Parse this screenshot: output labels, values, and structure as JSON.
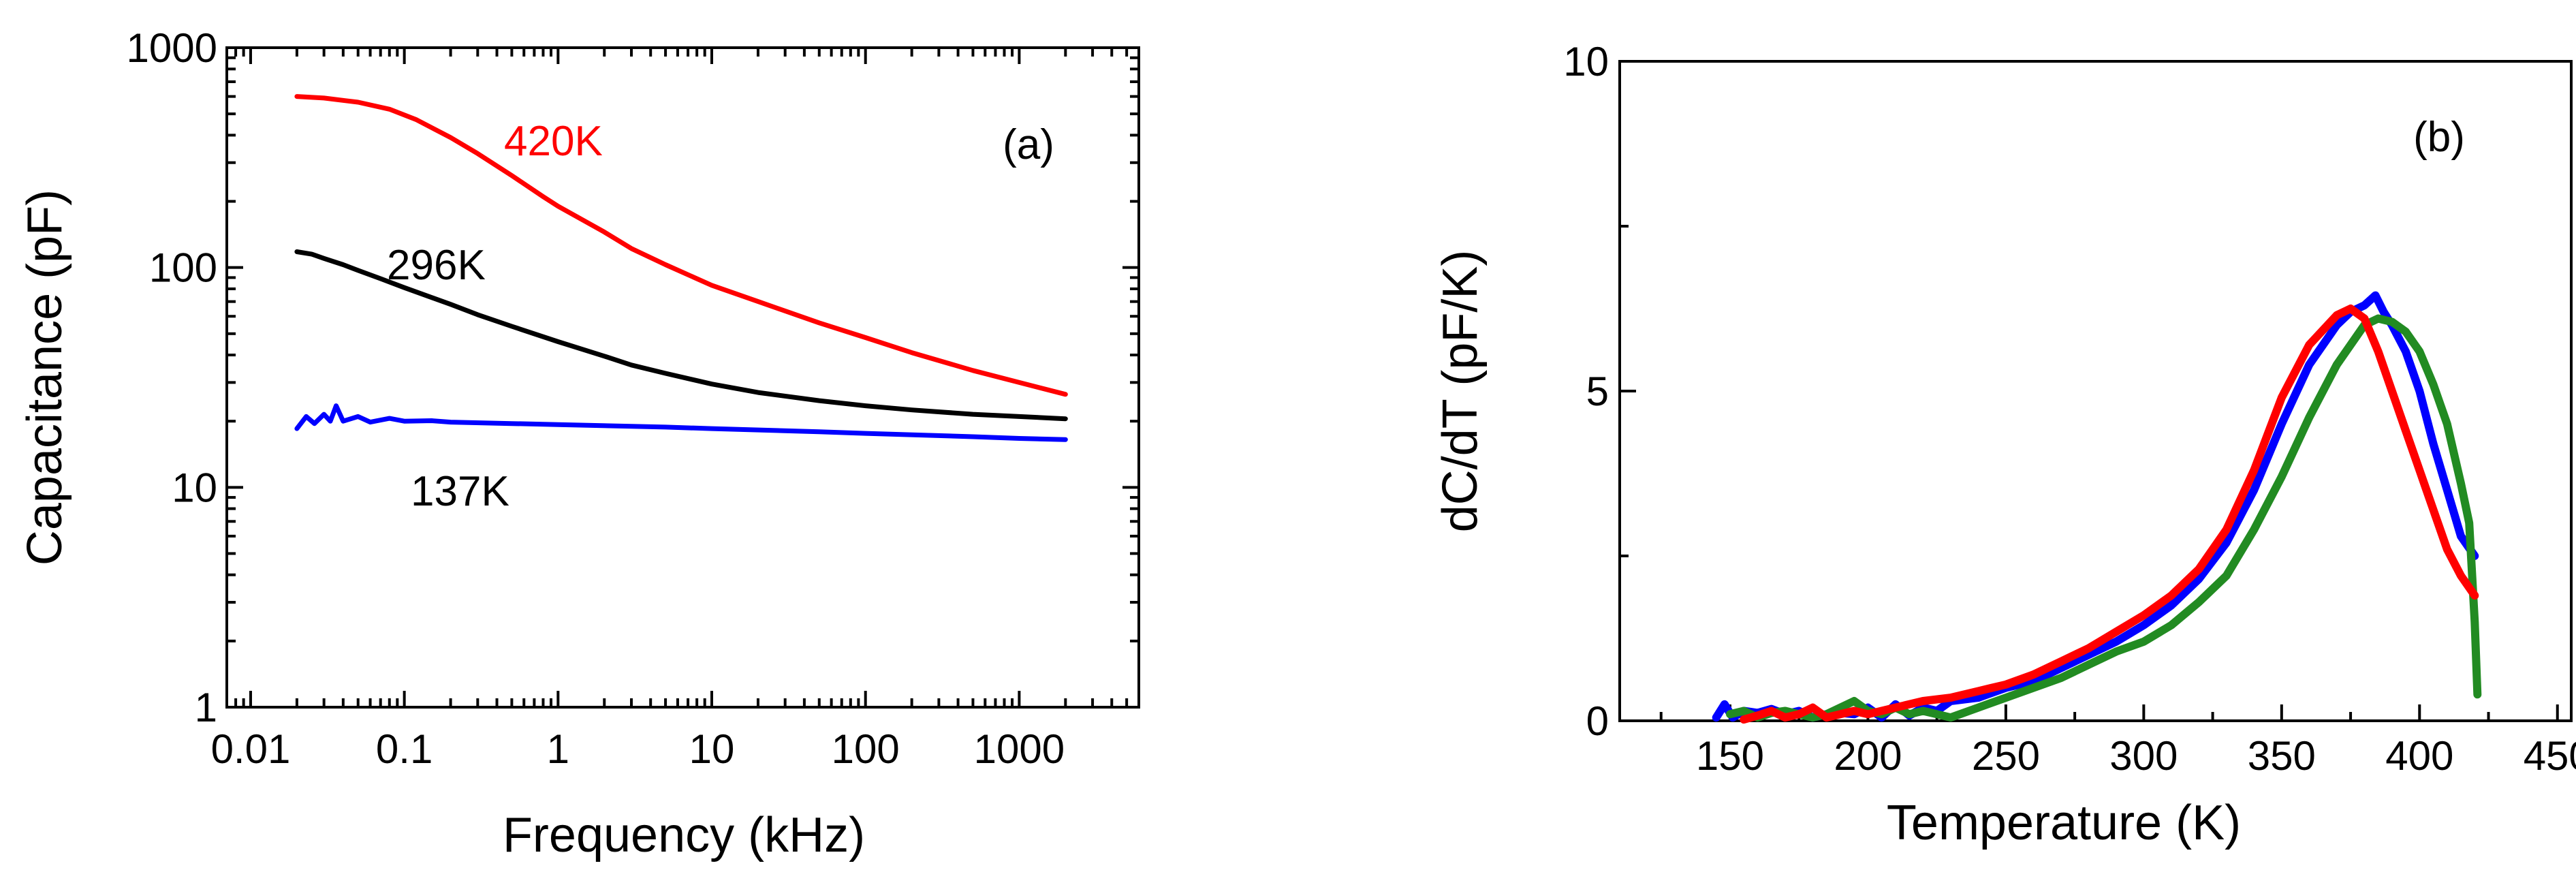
{
  "chart_data": [
    {
      "panel": "(a)",
      "type": "line",
      "xscale": "log",
      "yscale": "log",
      "xlabel": "Frequency (kHz)",
      "ylabel": "Capacitance (pF)",
      "xlim": [
        0.007,
        6000
      ],
      "ylim": [
        1,
        1000
      ],
      "xticks": [
        0.01,
        0.1,
        1,
        10,
        100,
        1000
      ],
      "xtick_labels": [
        "0.01",
        "0.1",
        "1",
        "10",
        "100",
        "1000"
      ],
      "yticks": [
        1,
        10,
        100,
        1000
      ],
      "ytick_labels": [
        "1",
        "10",
        "100",
        "1000"
      ],
      "series": [
        {
          "name": "420K",
          "label": "420K",
          "color": "#ff0000",
          "x": [
            0.02,
            0.03,
            0.05,
            0.08,
            0.12,
            0.2,
            0.3,
            0.5,
            0.8,
            1,
            2,
            3,
            5,
            10,
            20,
            50,
            100,
            200,
            500,
            1000,
            2000
          ],
          "y": [
            600,
            590,
            565,
            525,
            470,
            390,
            330,
            262,
            210,
            190,
            145,
            122,
            103,
            83,
            70,
            56,
            48,
            41,
            34,
            30,
            26.5
          ]
        },
        {
          "name": "296K",
          "label": "296K",
          "color": "#000000",
          "x": [
            0.02,
            0.025,
            0.03,
            0.04,
            0.05,
            0.07,
            0.1,
            0.2,
            0.3,
            0.5,
            1,
            2,
            3,
            5,
            10,
            20,
            50,
            100,
            200,
            500,
            1000,
            2000
          ],
          "y": [
            118,
            115,
            110,
            103,
            97,
            89,
            81,
            68,
            61,
            54,
            46,
            39.5,
            36,
            33,
            29.5,
            27,
            24.8,
            23.5,
            22.5,
            21.5,
            21,
            20.5
          ]
        },
        {
          "name": "137K",
          "label": "137K",
          "color": "#0000ff",
          "x": [
            0.02,
            0.023,
            0.026,
            0.03,
            0.033,
            0.036,
            0.04,
            0.05,
            0.06,
            0.08,
            0.1,
            0.15,
            0.2,
            0.5,
            1,
            5,
            10,
            50,
            100,
            500,
            1000,
            2000
          ],
          "y": [
            18.5,
            21,
            19.5,
            21.5,
            20,
            23.5,
            20,
            21,
            19.8,
            20.6,
            20,
            20.1,
            19.8,
            19.5,
            19.3,
            18.8,
            18.5,
            17.9,
            17.6,
            17,
            16.7,
            16.5
          ]
        }
      ]
    },
    {
      "panel": "(b)",
      "type": "line",
      "xlabel": "Temperature (K)",
      "ylabel": "dC/dT (pF/K)",
      "xlim": [
        110,
        455
      ],
      "ylim": [
        0,
        10
      ],
      "xticks": [
        150,
        200,
        250,
        300,
        350,
        400,
        450
      ],
      "xtick_labels": [
        "150",
        "200",
        "250",
        "300",
        "350",
        "400",
        "450"
      ],
      "yticks": [
        0,
        5,
        10
      ],
      "ytick_labels": [
        "0",
        "5",
        "10"
      ],
      "series": [
        {
          "name": "blue",
          "color": "#0000ff",
          "x": [
            145,
            148,
            151,
            155,
            160,
            165,
            170,
            175,
            180,
            185,
            190,
            195,
            200,
            205,
            210,
            215,
            220,
            225,
            230,
            240,
            250,
            260,
            270,
            280,
            290,
            300,
            310,
            320,
            330,
            340,
            350,
            360,
            370,
            375,
            380,
            384,
            387,
            390,
            395,
            400,
            405,
            410,
            415,
            420
          ],
          "y": [
            0.05,
            0.25,
            0.05,
            0.15,
            0.12,
            0.18,
            0.1,
            0.15,
            0.05,
            0.1,
            0.12,
            0.1,
            0.2,
            0.05,
            0.25,
            0.08,
            0.2,
            0.15,
            0.3,
            0.35,
            0.5,
            0.6,
            0.8,
            1.0,
            1.2,
            1.45,
            1.75,
            2.15,
            2.7,
            3.5,
            4.5,
            5.4,
            6.0,
            6.2,
            6.3,
            6.45,
            6.2,
            6.0,
            5.6,
            5.0,
            4.2,
            3.5,
            2.8,
            2.5
          ]
        },
        {
          "name": "green",
          "color": "#228b22",
          "x": [
            150,
            155,
            160,
            165,
            170,
            175,
            180,
            185,
            190,
            195,
            200,
            205,
            210,
            215,
            220,
            225,
            230,
            240,
            250,
            260,
            270,
            280,
            290,
            300,
            310,
            320,
            330,
            340,
            350,
            360,
            370,
            380,
            385,
            390,
            395,
            400,
            405,
            410,
            415,
            418,
            420,
            421
          ],
          "y": [
            0.1,
            0.15,
            0.05,
            0.12,
            0.15,
            0.1,
            0.05,
            0.1,
            0.2,
            0.3,
            0.15,
            0.1,
            0.2,
            0.1,
            0.15,
            0.1,
            0.05,
            0.2,
            0.35,
            0.5,
            0.65,
            0.85,
            1.05,
            1.2,
            1.45,
            1.8,
            2.2,
            2.9,
            3.7,
            4.6,
            5.4,
            6.0,
            6.1,
            6.05,
            5.9,
            5.6,
            5.1,
            4.5,
            3.6,
            3.0,
            1.5,
            0.4
          ]
        },
        {
          "name": "red",
          "color": "#ff0000",
          "x": [
            155,
            160,
            165,
            170,
            175,
            180,
            185,
            190,
            195,
            200,
            210,
            220,
            230,
            240,
            250,
            260,
            270,
            280,
            290,
            300,
            310,
            320,
            330,
            340,
            350,
            360,
            370,
            375,
            380,
            385,
            390,
            395,
            400,
            405,
            410,
            415,
            420
          ],
          "y": [
            0.02,
            0.08,
            0.15,
            0.05,
            0.1,
            0.2,
            0.05,
            0.1,
            0.15,
            0.1,
            0.2,
            0.3,
            0.35,
            0.45,
            0.55,
            0.7,
            0.9,
            1.1,
            1.35,
            1.6,
            1.9,
            2.3,
            2.9,
            3.8,
            4.9,
            5.7,
            6.15,
            6.25,
            6.1,
            5.6,
            5.0,
            4.4,
            3.8,
            3.2,
            2.6,
            2.2,
            1.9
          ]
        }
      ]
    }
  ]
}
